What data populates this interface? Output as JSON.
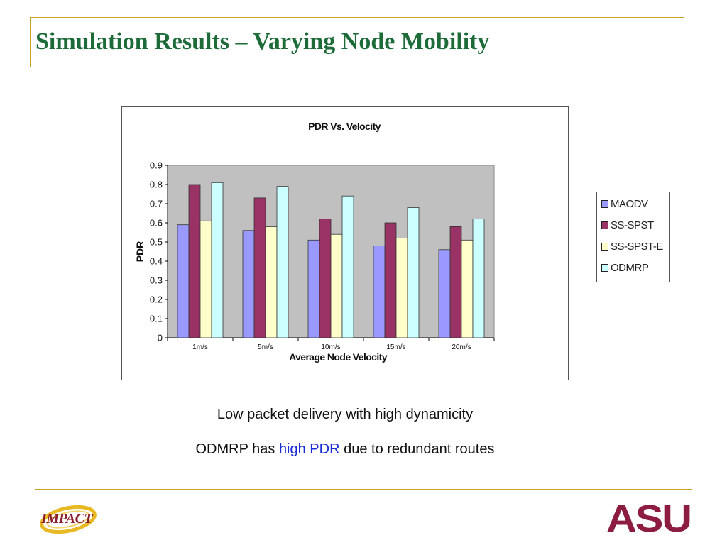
{
  "slide": {
    "title": "Simulation Results – Varying Node Mobility",
    "caption_line1": "Low packet delivery with high dynamicity",
    "caption_line2_pre": "ODMRP has ",
    "caption_line2_highlight": "high PDR",
    "caption_line2_post": " due to redundant routes",
    "highlight_color": "#1a2bd6",
    "logo_left": "IMPACT",
    "logo_right": "ASU"
  },
  "chart_data": {
    "type": "bar",
    "title": "PDR Vs. Velocity",
    "xlabel": "Average Node Velocity",
    "ylabel": "PDR",
    "categories": [
      "1m/s",
      "5m/s",
      "10m/s",
      "15m/s",
      "20m/s"
    ],
    "ylim": [
      0,
      0.9
    ],
    "yticks": [
      "0",
      "0.1",
      "0.2",
      "0.3",
      "0.4",
      "0.5",
      "0.6",
      "0.7",
      "0.8",
      "0.9"
    ],
    "grid": false,
    "legend_position": "right, outside",
    "plot_background": "#c0c0c0",
    "series": [
      {
        "name": "MAODV",
        "color": "#9999ff",
        "values": [
          0.59,
          0.56,
          0.51,
          0.48,
          0.46
        ]
      },
      {
        "name": "SS-SPST",
        "color": "#993366",
        "values": [
          0.8,
          0.73,
          0.62,
          0.6,
          0.58
        ]
      },
      {
        "name": "SS-SPST-E",
        "color": "#ffffcc",
        "values": [
          0.61,
          0.58,
          0.54,
          0.52,
          0.51
        ]
      },
      {
        "name": "ODMRP",
        "color": "#ccffff",
        "values": [
          0.81,
          0.79,
          0.74,
          0.68,
          0.62
        ]
      }
    ]
  }
}
